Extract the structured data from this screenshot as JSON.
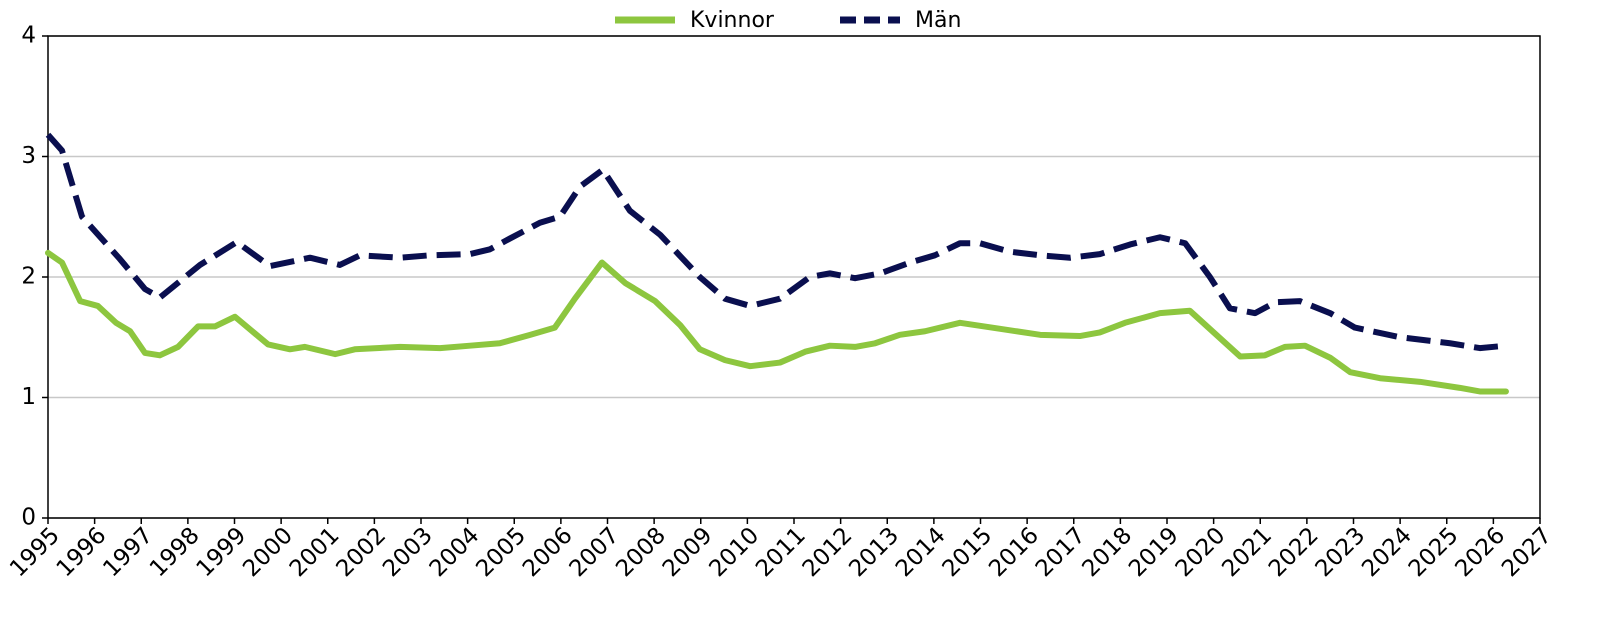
{
  "chart_data": {
    "type": "line",
    "xlim": [
      1995,
      2027
    ],
    "xticks": [
      1995,
      1996,
      1997,
      1998,
      1999,
      2000,
      2001,
      2002,
      2003,
      2004,
      2005,
      2006,
      2007,
      2008,
      2009,
      2010,
      2011,
      2012,
      2013,
      2014,
      2015,
      2016,
      2017,
      2018,
      2019,
      2020,
      2021,
      2022,
      2023,
      2024,
      2025,
      2026,
      2027
    ],
    "ylim": [
      0,
      4
    ],
    "yticks": [
      0,
      1,
      2,
      3,
      4
    ],
    "grid": true,
    "legend": "top",
    "series": [
      {
        "name": "Kvinnor",
        "color": "#8dc63f",
        "style": "solid",
        "x": [
          1995.0,
          1995.3,
          1995.69,
          1996.07,
          1996.46,
          1996.76,
          1997.08,
          1997.4,
          1997.79,
          1998.22,
          1998.58,
          1999.01,
          1999.72,
          2000.19,
          2000.51,
          2001.16,
          2001.58,
          2002.55,
          2003.41,
          2004.05,
          2004.69,
          2005.34,
          2005.87,
          2006.3,
          2006.88,
          2007.38,
          2008.02,
          2008.56,
          2008.98,
          2009.52,
          2010.06,
          2010.7,
          2011.24,
          2011.77,
          2012.31,
          2012.74,
          2013.27,
          2013.81,
          2014.56,
          2015.42,
          2016.28,
          2017.13,
          2017.56,
          2018.1,
          2018.85,
          2019.49,
          2020.03,
          2020.57,
          2021.1,
          2021.53,
          2021.96,
          2022.5,
          2022.93,
          2023.57,
          2024.43,
          2025.28,
          2025.71,
          2026.27
        ],
        "values": [
          2.2,
          2.12,
          1.8,
          1.76,
          1.62,
          1.55,
          1.37,
          1.35,
          1.42,
          1.59,
          1.59,
          1.67,
          1.44,
          1.4,
          1.42,
          1.36,
          1.4,
          1.42,
          1.41,
          1.43,
          1.45,
          1.52,
          1.58,
          1.82,
          2.12,
          1.95,
          1.8,
          1.6,
          1.4,
          1.31,
          1.26,
          1.29,
          1.38,
          1.43,
          1.42,
          1.45,
          1.52,
          1.55,
          1.62,
          1.57,
          1.52,
          1.51,
          1.54,
          1.62,
          1.7,
          1.72,
          1.53,
          1.34,
          1.35,
          1.42,
          1.43,
          1.33,
          1.21,
          1.16,
          1.13,
          1.08,
          1.05,
          1.05
        ]
      },
      {
        "name": "Män",
        "color": "#0a0f4f",
        "style": "dashed",
        "x": [
          1995.0,
          1995.3,
          1995.73,
          1996.54,
          1997.08,
          1997.4,
          1998.26,
          1999.05,
          1999.76,
          2000.62,
          2001.26,
          2001.69,
          2002.55,
          2003.19,
          2004.05,
          2004.48,
          2004.91,
          2005.55,
          2005.98,
          2006.41,
          2006.9,
          2007.48,
          2008.13,
          2008.98,
          2009.52,
          2010.06,
          2010.7,
          2011.34,
          2011.77,
          2012.31,
          2012.85,
          2013.49,
          2014.02,
          2014.56,
          2014.99,
          2015.63,
          2016.28,
          2016.92,
          2017.56,
          2018.21,
          2018.85,
          2019.39,
          2019.92,
          2020.35,
          2020.89,
          2021.32,
          2021.85,
          2022.5,
          2023.03,
          2024.0,
          2025.07,
          2025.71,
          2026.27
        ],
        "values": [
          3.18,
          3.05,
          2.5,
          2.15,
          1.9,
          1.83,
          2.1,
          2.29,
          2.09,
          2.16,
          2.1,
          2.18,
          2.16,
          2.18,
          2.19,
          2.23,
          2.32,
          2.45,
          2.5,
          2.75,
          2.89,
          2.55,
          2.35,
          2.0,
          1.82,
          1.76,
          1.82,
          2.0,
          2.03,
          1.99,
          2.03,
          2.12,
          2.18,
          2.28,
          2.28,
          2.21,
          2.18,
          2.16,
          2.19,
          2.27,
          2.33,
          2.28,
          2.0,
          1.74,
          1.7,
          1.79,
          1.8,
          1.7,
          1.58,
          1.5,
          1.45,
          1.41,
          1.43
        ]
      }
    ]
  }
}
